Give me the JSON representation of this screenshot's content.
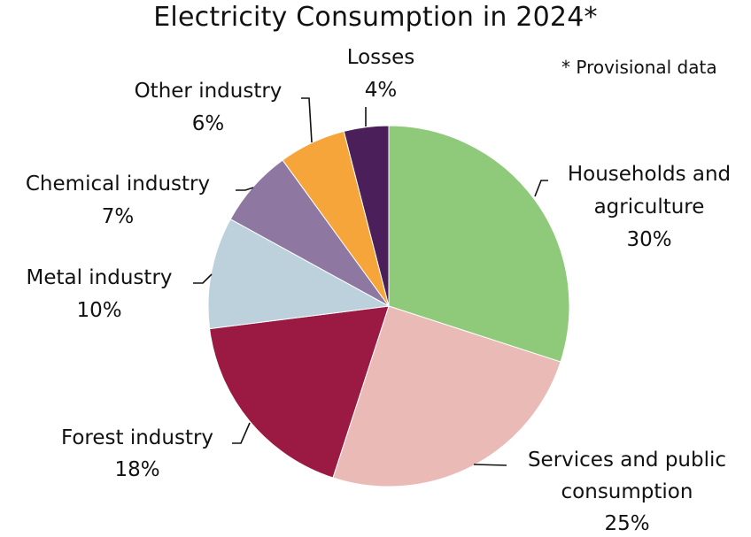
{
  "chart_data": {
    "type": "pie",
    "title": "Electricity Consumption in 2024*",
    "note": "* Provisional data",
    "start_angle": "12 o'clock",
    "direction": "clockwise",
    "slices": [
      {
        "label": "Households and agriculture",
        "label_lines": [
          "Households and",
          "agriculture"
        ],
        "value": 30,
        "value_label": "30%",
        "color": "#8fc97a"
      },
      {
        "label": "Services and public consumption",
        "label_lines": [
          "Services and public",
          "consumption"
        ],
        "value": 25,
        "value_label": "25%",
        "color": "#eabab7"
      },
      {
        "label": "Forest industry",
        "label_lines": [
          "Forest industry"
        ],
        "value": 18,
        "value_label": "18%",
        "color": "#9a1a43"
      },
      {
        "label": "Metal industry",
        "label_lines": [
          "Metal industry"
        ],
        "value": 10,
        "value_label": "10%",
        "color": "#bdd1dc"
      },
      {
        "label": "Chemical industry",
        "label_lines": [
          "Chemical industry"
        ],
        "value": 7,
        "value_label": "7%",
        "color": "#8e78a2"
      },
      {
        "label": "Other industry",
        "label_lines": [
          "Other industry"
        ],
        "value": 6,
        "value_label": "6%",
        "color": "#f6a53a"
      },
      {
        "label": "Losses",
        "label_lines": [
          "Losses"
        ],
        "value": 4,
        "value_label": "4%",
        "color": "#4a1f5a"
      }
    ]
  }
}
